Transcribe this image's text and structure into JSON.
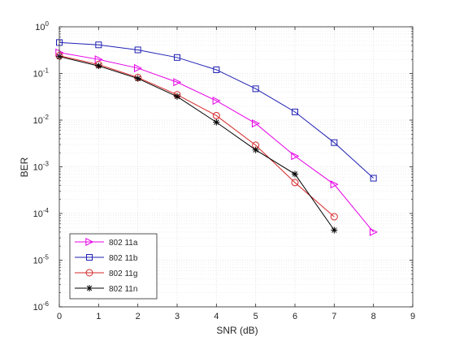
{
  "chart_data": {
    "type": "line",
    "title": "",
    "xlabel": "SNR (dB)",
    "ylabel": "BER",
    "xlim": [
      0,
      9
    ],
    "ylim": [
      1e-06,
      1
    ],
    "yscale": "log",
    "x_ticks": [
      "0",
      "1",
      "2",
      "3",
      "4",
      "5",
      "6",
      "7",
      "8",
      "9"
    ],
    "y_ticks": [
      {
        "base": "10",
        "exp": "0"
      },
      {
        "base": "10",
        "exp": "-1"
      },
      {
        "base": "10",
        "exp": "-2"
      },
      {
        "base": "10",
        "exp": "-3"
      },
      {
        "base": "10",
        "exp": "-4"
      },
      {
        "base": "10",
        "exp": "-5"
      },
      {
        "base": "10",
        "exp": "-6"
      }
    ],
    "grid": true,
    "minor_grid": true,
    "legend_position": "bottom-left",
    "series": [
      {
        "name": "802 11a",
        "color": "#e600e6",
        "marker": "triangle-right",
        "x": [
          0,
          1,
          2,
          3,
          4,
          5,
          6,
          7,
          8
        ],
        "y": [
          0.28,
          0.2,
          0.13,
          0.065,
          0.026,
          0.0085,
          0.0017,
          0.00042,
          4e-05
        ]
      },
      {
        "name": "802 11b",
        "color": "#1f1fb4",
        "marker": "square",
        "x": [
          0,
          1,
          2,
          3,
          4,
          5,
          6,
          7,
          8
        ],
        "y": [
          0.46,
          0.41,
          0.32,
          0.22,
          0.12,
          0.047,
          0.015,
          0.0033,
          0.00057
        ]
      },
      {
        "name": "802 11g",
        "color": "#d62728",
        "marker": "circle",
        "x": [
          0,
          1,
          2,
          3,
          4,
          5,
          6,
          7
        ],
        "y": [
          0.24,
          0.155,
          0.082,
          0.035,
          0.0125,
          0.0029,
          0.00046,
          8.5e-05
        ]
      },
      {
        "name": "802 11n",
        "color": "#000000",
        "marker": "asterisk",
        "x": [
          0,
          1,
          2,
          3,
          4,
          5,
          6,
          7
        ],
        "y": [
          0.23,
          0.145,
          0.078,
          0.032,
          0.009,
          0.0023,
          0.0007,
          4.4e-05
        ]
      }
    ]
  }
}
